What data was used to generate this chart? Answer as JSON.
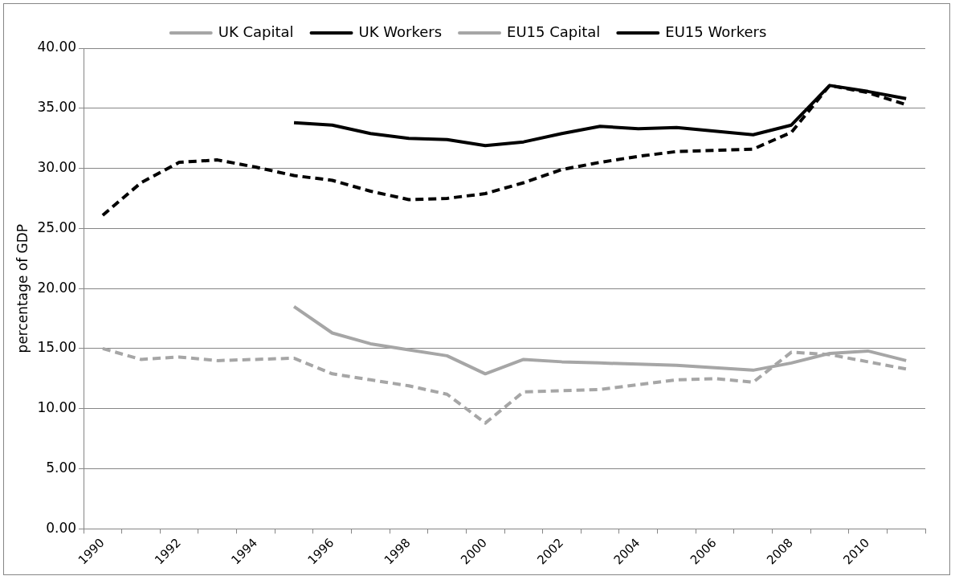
{
  "chart_data": {
    "type": "line",
    "ylabel": "percentage of GDP",
    "categories": [
      "1990",
      null,
      "1992",
      null,
      "1994",
      null,
      "1996",
      null,
      "1998",
      null,
      "2000",
      null,
      "2002",
      null,
      "2004",
      null,
      "2006",
      null,
      "2008",
      null,
      "2010",
      null
    ],
    "series": [
      {
        "name": "UK Capital",
        "color": "#a6a6a6",
        "line_style": "dashed",
        "values": [
          15.0,
          14.1,
          14.3,
          14.0,
          14.1,
          14.2,
          12.9,
          12.4,
          11.9,
          11.2,
          8.8,
          11.4,
          11.5,
          11.6,
          12.0,
          12.4,
          12.5,
          12.2,
          14.7,
          14.5,
          13.9,
          13.3
        ]
      },
      {
        "name": "UK Workers",
        "color": "#000000",
        "line_style": "dashed",
        "values": [
          26.1,
          28.8,
          30.5,
          30.7,
          30.1,
          29.4,
          29.0,
          28.1,
          27.4,
          27.5,
          27.9,
          28.8,
          29.9,
          30.5,
          31.0,
          31.4,
          31.5,
          31.6,
          33.0,
          36.9,
          36.3,
          35.3
        ]
      },
      {
        "name": "EU15 Capital",
        "color": "#a6a6a6",
        "line_style": "solid",
        "values": [
          null,
          null,
          null,
          null,
          null,
          18.5,
          16.3,
          15.4,
          14.9,
          14.4,
          12.9,
          14.1,
          13.9,
          13.8,
          13.7,
          13.6,
          13.4,
          13.2,
          13.8,
          14.6,
          14.8,
          14.0
        ]
      },
      {
        "name": "EU15 Workers",
        "color": "#000000",
        "line_style": "solid",
        "values": [
          null,
          null,
          null,
          null,
          null,
          33.8,
          33.6,
          32.9,
          32.5,
          32.4,
          31.9,
          32.2,
          32.9,
          33.5,
          33.3,
          33.4,
          33.1,
          32.8,
          33.6,
          36.9,
          36.4,
          35.8
        ]
      }
    ],
    "ylim": [
      0,
      40
    ],
    "yticks": [
      {
        "value": 0,
        "label": "0.00"
      },
      {
        "value": 5,
        "label": "5.00"
      },
      {
        "value": 10,
        "label": "10.00"
      },
      {
        "value": 15,
        "label": "15.00"
      },
      {
        "value": 20,
        "label": "20.00"
      },
      {
        "value": 25,
        "label": "25.00"
      },
      {
        "value": 30,
        "label": "30.00"
      },
      {
        "value": 35,
        "label": "35.00"
      },
      {
        "value": 40,
        "label": "40.00"
      }
    ],
    "grid": "y",
    "legend": "top",
    "marker": "none"
  }
}
